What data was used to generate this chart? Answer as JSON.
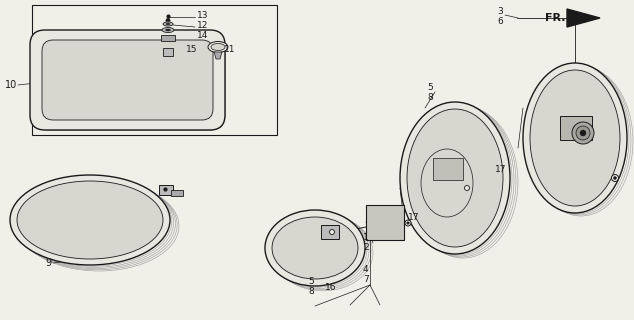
{
  "bg_color": "#f0efe8",
  "line_color": "#1a1a1a",
  "mirror_fill": "#e8e7e0",
  "mirror_inner": "#d8d7cf",
  "part_fill": "#c8c8c0"
}
